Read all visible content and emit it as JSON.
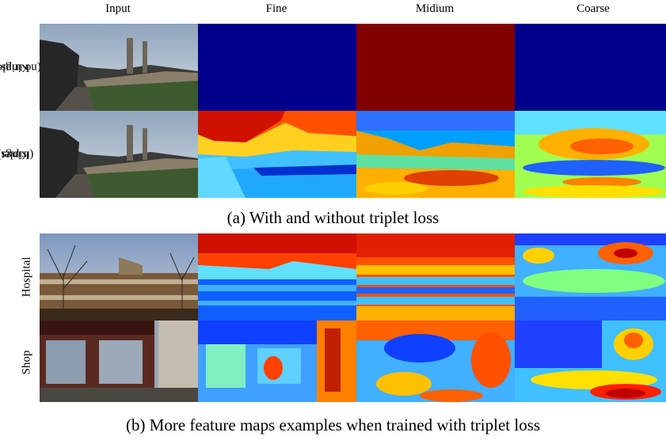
{
  "columns": [
    "Input",
    "Fine",
    "Midium",
    "Coarse"
  ],
  "rows": {
    "kings_no_triplet": [
      "Kings",
      "(no triplet)"
    ],
    "kings_triplet": [
      "Kings",
      "(triplet)"
    ],
    "hospital": "Hospital",
    "shop": "Shop"
  },
  "captions": {
    "a": "(a) With and without triplet loss",
    "b": "(b) More feature maps examples when trained with triplet loss"
  },
  "colors": {
    "uniform_blue": "#00008b",
    "uniform_red": "#800000"
  }
}
